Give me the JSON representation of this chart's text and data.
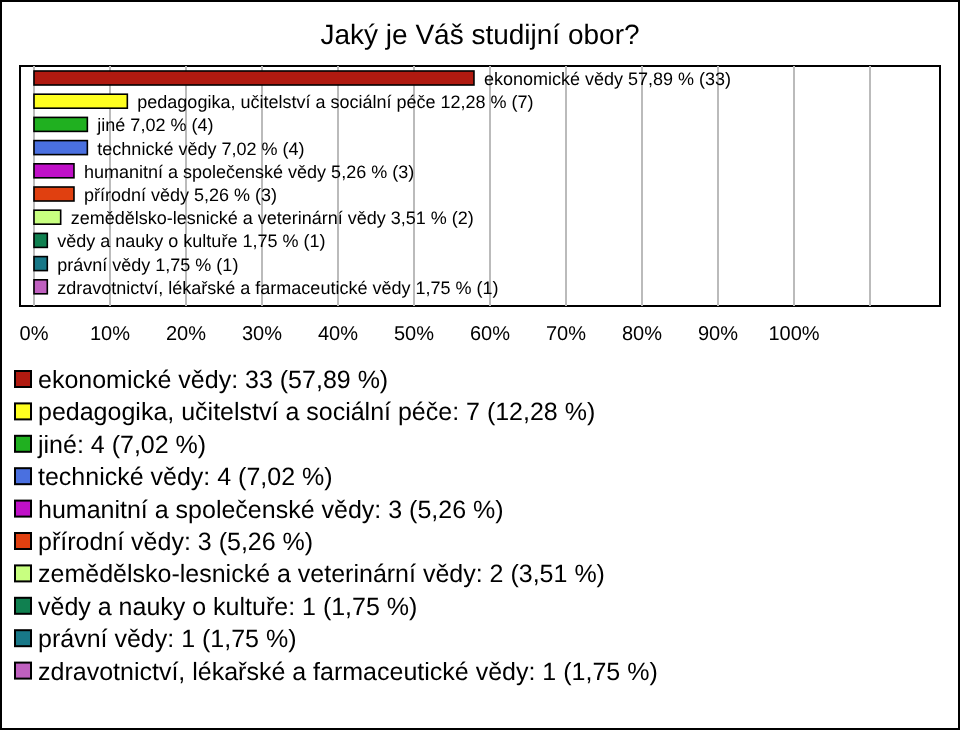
{
  "chart_data": {
    "type": "bar",
    "orientation": "horizontal",
    "title": "Jaký je Váš studijní obor?",
    "categories": [
      null,
      null,
      null,
      null,
      null,
      null,
      null,
      null,
      null,
      null
    ],
    "values": [
      57.89,
      12.28,
      7.02,
      7.02,
      5.26,
      5.26,
      3.51,
      1.75,
      1.75,
      1.75
    ],
    "colors": [
      "#b01a10",
      "#ffff20",
      "#20b020",
      "#4a70e0",
      "#c010c8",
      "#e04010",
      "#c8ff80",
      "#108050",
      "#187888",
      "#c060c0"
    ],
    "value_labels": [
      "ekonomické vědy 57,89 % (33)",
      "pedagogika, učitelství a sociální péče 12,28 % (7)",
      "jiné 7,02 % (4)",
      "technické vědy 7,02 % (4)",
      "humanitní a společenské vědy 5,26 % (3)",
      "přírodní vědy 5,26 % (3)",
      "zemědělsko-lesnické a veterinární vědy 3,51 % (2)",
      "vědy a nauky o kultuře 1,75 % (1)",
      "právní vědy 1,75 % (1)",
      "zdravotnictví, lékařské a farmaceutické vědy 1,75 % (1)"
    ],
    "xlim": [
      0,
      120
    ],
    "xticks": [
      {
        "value": 0,
        "label": "0%"
      },
      {
        "value": 10,
        "label": "10%"
      },
      {
        "value": 20,
        "label": "20%"
      },
      {
        "value": 30,
        "label": "30%"
      },
      {
        "value": 40,
        "label": "40%"
      },
      {
        "value": 50,
        "label": "50%"
      },
      {
        "value": 60,
        "label": "60%"
      },
      {
        "value": 70,
        "label": "70%"
      },
      {
        "value": 80,
        "label": "80%"
      },
      {
        "value": 90,
        "label": "90%"
      },
      {
        "value": 100,
        "label": "100%"
      },
      {
        "value": 110,
        "label": null
      }
    ],
    "grid": "x",
    "tick_labels": "x",
    "annotations": [
      "ekonomické vědy: 33 (57,89 %)",
      "pedagogika, učitelství a sociální péče: 7 (12,28 %)",
      "jiné: 4 (7,02 %)",
      "technické vědy: 4 (7,02 %)",
      "humanitní a společenské vědy: 3 (5,26 %)",
      "přírodní vědy: 3 (5,26 %)",
      "zemědělsko-lesnické a veterinární vědy: 2 (3,51 %)",
      "vědy a nauky o kultuře: 1 (1,75 %)",
      "právní vědy: 1 (1,75 %)",
      "zdravotnictví, lékařské a farmaceutické vědy: 1 (1,75 %)"
    ]
  }
}
